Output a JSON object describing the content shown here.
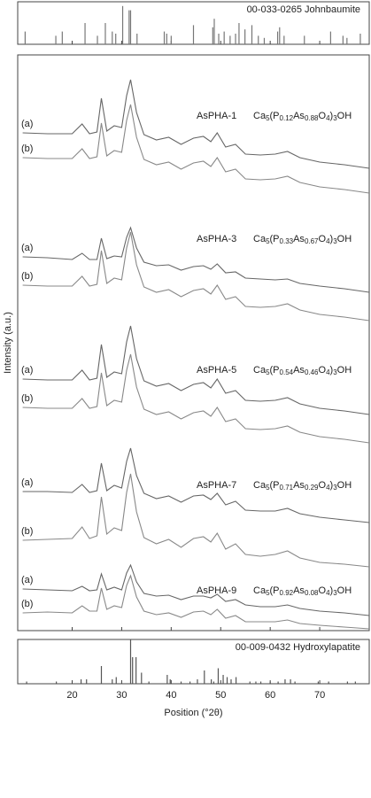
{
  "chart_data": [
    {
      "type": "stick",
      "title": "00-033-0265 Johnbaumite",
      "xlim": [
        9,
        80
      ],
      "xticks": [
        20,
        30,
        40,
        50,
        60,
        70
      ],
      "ylim": [
        0,
        100
      ],
      "color": "#777",
      "x": [
        10.5,
        16.7,
        18.0,
        22.6,
        25.1,
        26.7,
        28.1,
        28.8,
        30.2,
        31.5,
        31.8,
        33.1,
        38.6,
        39.1,
        40.0,
        44.5,
        48.4,
        48.7,
        49.6,
        50.7,
        51.9,
        53.0,
        53.7,
        54.9,
        56.3,
        57.6,
        58.8,
        61.5,
        61.9,
        62.8,
        66.9,
        72.2,
        74.7,
        75.5,
        78.2
      ],
      "values": [
        30,
        20,
        30,
        50,
        20,
        50,
        30,
        25,
        90,
        80,
        80,
        25,
        30,
        25,
        20,
        45,
        40,
        60,
        25,
        30,
        20,
        25,
        50,
        35,
        45,
        20,
        15,
        30,
        40,
        20,
        20,
        30,
        20,
        15,
        25
      ]
    },
    {
      "type": "line",
      "y_label": "Intensity (a.u.)",
      "xlim": [
        9,
        80
      ],
      "xticks": [
        20,
        30,
        40,
        50,
        60,
        70
      ],
      "ylim": [
        0,
        650
      ],
      "x": [
        10,
        15,
        20,
        22,
        23.5,
        25,
        25.9,
        27,
        28.5,
        30,
        31,
        31.8,
        33,
        34.5,
        37,
        39.5,
        42,
        44.5,
        46.5,
        48,
        49.3,
        51,
        53,
        55,
        58,
        61,
        63.5,
        66,
        70,
        75,
        80
      ],
      "series": [
        {
          "name": "(a)",
          "color": "#666",
          "values": [
            562,
            561,
            561,
            572,
            561,
            563,
            601,
            564,
            570,
            568,
            604,
            622,
            585,
            560,
            554,
            557,
            549,
            556,
            558,
            552,
            562,
            546,
            549,
            538,
            537,
            538,
            541,
            534,
            529,
            526,
            522
          ]
        },
        {
          "name": "(b)",
          "color": "#888",
          "values": [
            534,
            533,
            533,
            544,
            533,
            535,
            573,
            536,
            542,
            540,
            576,
            594,
            557,
            532,
            526,
            529,
            521,
            528,
            530,
            524,
            534,
            518,
            521,
            510,
            509,
            510,
            513,
            506,
            501,
            498,
            494
          ]
        },
        {
          "name": "(a)",
          "color": "#666",
          "values": [
            422,
            421,
            419,
            426,
            419,
            419,
            443,
            420,
            423,
            422,
            444,
            455,
            432,
            416,
            412,
            413,
            407,
            411,
            412,
            408,
            414,
            404,
            405,
            398,
            397,
            396,
            397,
            392,
            389,
            386,
            382
          ]
        },
        {
          "name": "(b)",
          "color": "#888",
          "values": [
            390,
            389,
            389,
            400,
            389,
            391,
            429,
            392,
            398,
            396,
            432,
            450,
            413,
            388,
            382,
            385,
            377,
            384,
            386,
            380,
            390,
            374,
            377,
            366,
            365,
            366,
            369,
            362,
            357,
            354,
            350
          ]
        },
        {
          "name": "(a)",
          "color": "#666",
          "values": [
            284,
            283,
            283,
            294,
            283,
            285,
            323,
            286,
            292,
            290,
            326,
            344,
            307,
            282,
            276,
            279,
            271,
            278,
            280,
            274,
            284,
            268,
            271,
            260,
            259,
            260,
            263,
            256,
            251,
            248,
            244
          ]
        },
        {
          "name": "(b)",
          "color": "#888",
          "values": [
            252,
            251,
            251,
            262,
            251,
            253,
            291,
            254,
            260,
            258,
            294,
            312,
            275,
            250,
            244,
            247,
            239,
            246,
            248,
            242,
            252,
            236,
            239,
            228,
            227,
            228,
            231,
            224,
            219,
            216,
            212
          ]
        },
        {
          "name": "(a)",
          "color": "#666",
          "values": [
            157,
            157,
            156,
            165,
            156,
            158,
            189,
            158,
            164,
            161,
            191,
            206,
            175,
            155,
            149,
            152,
            145,
            152,
            153,
            148,
            155,
            142,
            146,
            136,
            135,
            135,
            138,
            132,
            128,
            125,
            122
          ]
        },
        {
          "name": "(b)",
          "color": "#888",
          "values": [
            102,
            103,
            104,
            117,
            104,
            107,
            151,
            109,
            116,
            113,
            156,
            177,
            134,
            105,
            98,
            103,
            94,
            104,
            106,
            100,
            110,
            92,
            98,
            86,
            84,
            86,
            90,
            82,
            77,
            75,
            72
          ]
        },
        {
          "name": "(a)",
          "color": "#666",
          "values": [
            47,
            46,
            45,
            50,
            45,
            46,
            64,
            46,
            49,
            46,
            65,
            74,
            55,
            42,
            39,
            40,
            35,
            39,
            39,
            37,
            41,
            33,
            35,
            29,
            27,
            27,
            29,
            25,
            22,
            20,
            17
          ]
        },
        {
          "name": "(b)",
          "color": "#888",
          "values": [
            20,
            21,
            20,
            28,
            22,
            22,
            48,
            24,
            28,
            26,
            51,
            62,
            38,
            22,
            18,
            20,
            15,
            21,
            22,
            18,
            24,
            14,
            17,
            10,
            10,
            10,
            12,
            8,
            6,
            4,
            2
          ]
        }
      ],
      "annotations": [
        {
          "sample": "AsPHA-1",
          "formula": [
            "Ca",
            "5",
            "(P",
            "0.12",
            "As",
            "0.88",
            "O",
            "4",
            ")",
            "3",
            "OH"
          ]
        },
        {
          "sample": "AsPHA-3",
          "formula": [
            "Ca",
            "5",
            "(P",
            "0.33",
            "As",
            "0.67",
            "O",
            "4",
            ")",
            "3",
            "OH"
          ]
        },
        {
          "sample": "AsPHA-5",
          "formula": [
            "Ca",
            "5",
            "(P",
            "0.54",
            "As",
            "0.46",
            "O",
            "4",
            ")",
            "3",
            "OH"
          ]
        },
        {
          "sample": "AsPHA-7",
          "formula": [
            "Ca",
            "5",
            "(P",
            "0.71",
            "As",
            "0.29",
            "O",
            "4",
            ")",
            "3",
            "OH"
          ]
        },
        {
          "sample": "AsPHA-9",
          "formula": [
            "Ca",
            "5",
            "(P",
            "0.92",
            "As",
            "0.08",
            "O",
            "4",
            ")",
            "3",
            "OH"
          ]
        }
      ]
    },
    {
      "type": "stick",
      "title": "00-009-0432 Hydroxylapatite",
      "x_label": "Position (°2θ)",
      "xlim": [
        9,
        80
      ],
      "xticks": [
        20,
        30,
        40,
        50,
        60,
        70
      ],
      "ylim": [
        0,
        100
      ],
      "color": "#555",
      "x": [
        10.8,
        16.8,
        21.8,
        22.9,
        25.9,
        28.1,
        28.9,
        31.8,
        32.2,
        32.9,
        34.0,
        35.5,
        39.2,
        39.8,
        42.0,
        43.8,
        45.3,
        46.7,
        48.1,
        48.6,
        49.5,
        50.5,
        51.3,
        52.1,
        53.1,
        55.9,
        57.1,
        58.1,
        60.0,
        61.6,
        63.0,
        64.1,
        65.0,
        69.7,
        71.8,
        75.6,
        77.2
      ],
      "values": [
        5,
        5,
        10,
        10,
        40,
        10,
        15,
        100,
        60,
        60,
        25,
        5,
        20,
        10,
        5,
        5,
        10,
        30,
        10,
        5,
        35,
        20,
        15,
        10,
        15,
        5,
        5,
        5,
        5,
        5,
        10,
        10,
        5,
        5,
        5,
        5,
        5
      ]
    }
  ]
}
